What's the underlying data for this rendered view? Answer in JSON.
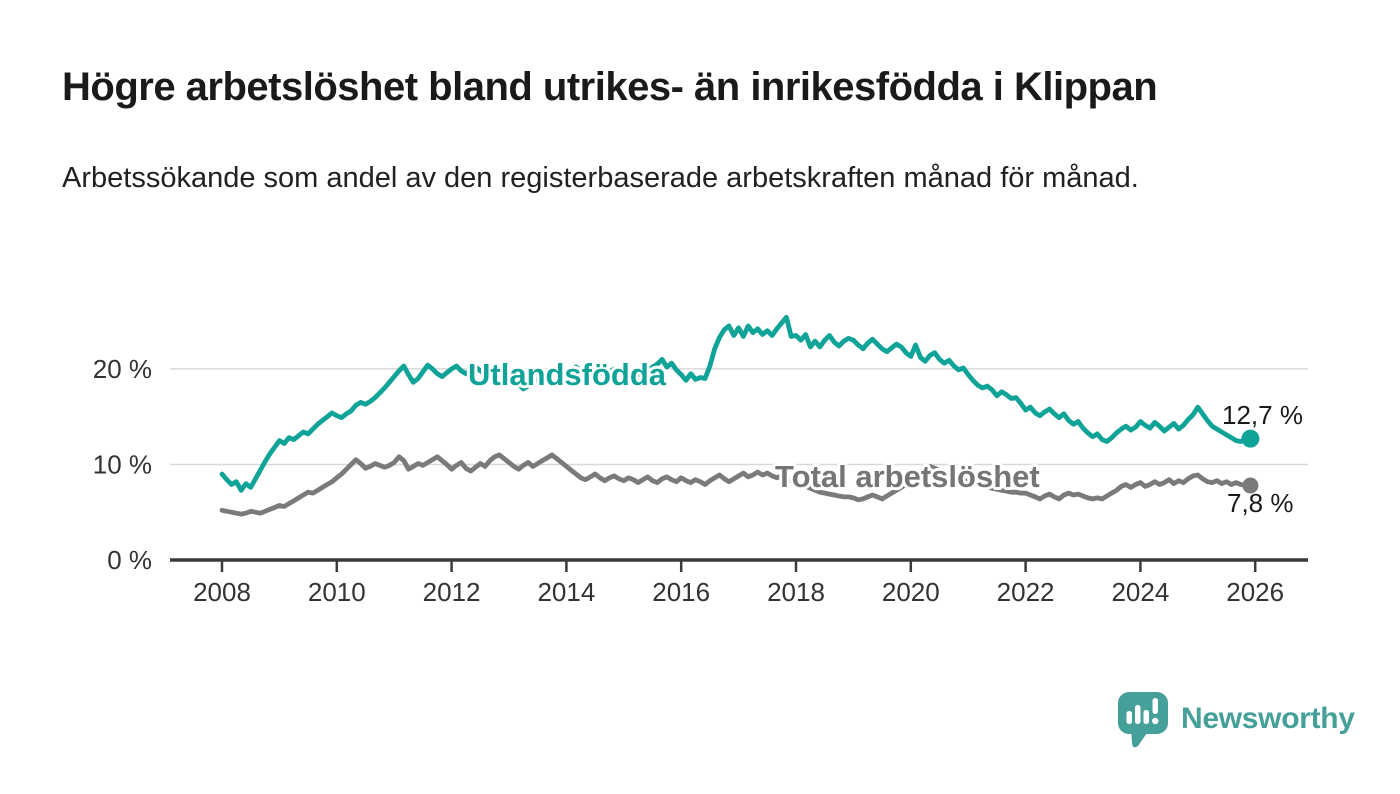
{
  "header": {
    "title": "Högre arbetslöshet bland utrikes- än inrikesfödda i Klippan",
    "subtitle": "Arbetssökande som andel av den registerbaserade arbetskraften månad för månad."
  },
  "footer": {
    "brand_name": "Newsworthy"
  },
  "colors": {
    "teal_line": "#10a397",
    "gray_line": "#7a7a7a",
    "gray_label": "#757575",
    "axis": "#3b3b3b",
    "tick_text": "#333333",
    "grid": "#d8d8d8",
    "end_label_text": "#1a1a1a",
    "logo_teal": "#46a09a"
  },
  "chart_data": {
    "type": "line",
    "title": "Högre arbetslöshet bland utrikes- än inrikesfödda i Klippan",
    "xlabel": "",
    "ylabel": "",
    "frequency": "monthly",
    "x_start": "2008-01",
    "x_end": "2025-12",
    "ylim": [
      0,
      27
    ],
    "grid": "horizontal",
    "legend_position": "inline-labels",
    "x_tick_years": [
      2008,
      2010,
      2012,
      2014,
      2016,
      2018,
      2020,
      2022,
      2024,
      2026
    ],
    "x_tick_labels": [
      "2008",
      "2010",
      "2012",
      "2014",
      "2016",
      "2018",
      "2020",
      "2022",
      "2024",
      "2026"
    ],
    "y_ticks": [
      {
        "value": 0,
        "label": "0 %"
      },
      {
        "value": 10,
        "label": "10 %"
      },
      {
        "value": 20,
        "label": "20 %"
      }
    ],
    "series": [
      {
        "name": "Utlandsfödda",
        "color": "#10a397",
        "end_label": "12,7 %",
        "end_value": 12.7,
        "values": [
          9.0,
          8.4,
          7.9,
          8.2,
          7.3,
          8.0,
          7.6,
          8.5,
          9.4,
          10.3,
          11.1,
          11.8,
          12.5,
          12.2,
          12.8,
          12.6,
          13.0,
          13.4,
          13.2,
          13.7,
          14.2,
          14.6,
          15.0,
          15.4,
          15.1,
          14.9,
          15.3,
          15.6,
          16.2,
          16.5,
          16.3,
          16.6,
          17.0,
          17.5,
          18.0,
          18.6,
          19.2,
          19.8,
          20.3,
          19.4,
          18.6,
          19.0,
          19.7,
          20.4,
          20.0,
          19.5,
          19.2,
          19.6,
          20.0,
          20.3,
          19.8,
          19.5,
          19.9,
          20.2,
          19.8,
          19.4,
          19.0,
          18.7,
          19.1,
          19.4,
          19.1,
          18.8,
          18.4,
          17.9,
          18.2,
          18.6,
          19.0,
          19.3,
          19.6,
          19.9,
          19.6,
          19.3,
          19.6,
          19.9,
          20.2,
          19.8,
          19.5,
          19.8,
          20.1,
          19.7,
          19.4,
          19.7,
          20.0,
          19.7,
          19.8,
          19.5,
          19.7,
          19.4,
          19.6,
          19.9,
          20.2,
          20.5,
          21.0,
          20.2,
          20.6,
          19.9,
          19.4,
          18.8,
          19.5,
          18.9,
          19.1,
          19.0,
          20.3,
          22.1,
          23.3,
          24.1,
          24.5,
          23.5,
          24.3,
          23.4,
          24.5,
          23.8,
          24.2,
          23.6,
          24.0,
          23.5,
          24.2,
          24.8,
          25.4,
          23.4,
          23.5,
          23.0,
          23.6,
          22.3,
          22.9,
          22.3,
          23.0,
          23.5,
          22.8,
          22.4,
          22.9,
          23.2,
          23.0,
          22.5,
          22.1,
          22.7,
          23.1,
          22.6,
          22.1,
          21.8,
          22.2,
          22.6,
          22.3,
          21.7,
          21.3,
          22.5,
          21.2,
          20.8,
          21.4,
          21.7,
          21.0,
          20.6,
          20.9,
          20.3,
          19.9,
          20.1,
          19.4,
          18.8,
          18.3,
          18.0,
          18.2,
          17.8,
          17.2,
          17.6,
          17.3,
          16.9,
          17.0,
          16.4,
          15.7,
          16.0,
          15.4,
          15.1,
          15.5,
          15.8,
          15.3,
          14.9,
          15.3,
          14.6,
          14.2,
          14.5,
          13.8,
          13.3,
          12.9,
          13.2,
          12.6,
          12.4,
          12.8,
          13.3,
          13.7,
          14.0,
          13.6,
          13.9,
          14.5,
          14.1,
          13.8,
          14.4,
          14.0,
          13.5,
          13.9,
          14.3,
          13.7,
          14.1,
          14.7,
          15.2,
          16.0,
          15.3,
          14.6,
          14.0,
          13.7,
          13.4,
          13.1,
          12.8,
          12.5,
          12.4,
          12.6,
          12.7
        ]
      },
      {
        "name": "Total arbetslöshet",
        "color": "#7a7a7a",
        "end_label": "7,8 %",
        "end_value": 7.8,
        "values": [
          5.2,
          5.1,
          5.0,
          4.9,
          4.8,
          4.9,
          5.1,
          5.0,
          4.9,
          5.1,
          5.3,
          5.5,
          5.7,
          5.6,
          5.9,
          6.2,
          6.5,
          6.8,
          7.1,
          7.0,
          7.3,
          7.6,
          7.9,
          8.2,
          8.6,
          9.0,
          9.5,
          10.0,
          10.5,
          10.1,
          9.6,
          9.8,
          10.1,
          9.9,
          9.7,
          9.9,
          10.2,
          10.8,
          10.4,
          9.5,
          9.8,
          10.1,
          9.9,
          10.2,
          10.5,
          10.8,
          10.4,
          10.0,
          9.5,
          9.9,
          10.2,
          9.6,
          9.3,
          9.7,
          10.1,
          9.8,
          10.4,
          10.8,
          11.0,
          10.6,
          10.2,
          9.8,
          9.5,
          9.9,
          10.2,
          9.8,
          10.1,
          10.4,
          10.7,
          11.0,
          10.6,
          10.2,
          9.8,
          9.4,
          9.0,
          8.6,
          8.4,
          8.7,
          9.0,
          8.6,
          8.3,
          8.6,
          8.8,
          8.5,
          8.3,
          8.6,
          8.4,
          8.1,
          8.4,
          8.7,
          8.3,
          8.1,
          8.5,
          8.7,
          8.4,
          8.2,
          8.6,
          8.3,
          8.1,
          8.4,
          8.2,
          7.9,
          8.3,
          8.6,
          8.9,
          8.5,
          8.2,
          8.5,
          8.8,
          9.1,
          8.7,
          8.9,
          9.2,
          8.9,
          9.1,
          8.8,
          8.6,
          8.8,
          8.5,
          8.3,
          8.1,
          7.9,
          7.7,
          7.5,
          7.3,
          7.1,
          7.0,
          6.9,
          6.8,
          6.7,
          6.6,
          6.6,
          6.5,
          6.3,
          6.4,
          6.6,
          6.8,
          6.6,
          6.4,
          6.7,
          7.0,
          7.3,
          7.6,
          7.9,
          8.3,
          8.7,
          9.2,
          9.6,
          9.8,
          9.6,
          9.4,
          9.2,
          9.0,
          8.8,
          8.6,
          8.4,
          8.2,
          8.1,
          7.9,
          7.8,
          7.6,
          7.5,
          7.4,
          7.3,
          7.2,
          7.1,
          7.1,
          7.0,
          7.0,
          6.8,
          6.6,
          6.4,
          6.7,
          6.9,
          6.6,
          6.4,
          6.8,
          7.0,
          6.8,
          6.9,
          6.7,
          6.5,
          6.4,
          6.5,
          6.4,
          6.7,
          7.0,
          7.3,
          7.7,
          7.9,
          7.6,
          7.9,
          8.1,
          7.7,
          7.9,
          8.2,
          7.9,
          8.1,
          8.4,
          8.0,
          8.3,
          8.1,
          8.5,
          8.8,
          8.9,
          8.5,
          8.2,
          8.1,
          8.3,
          8.0,
          8.2,
          7.9,
          8.1,
          7.9,
          7.8,
          7.8
        ]
      }
    ]
  }
}
